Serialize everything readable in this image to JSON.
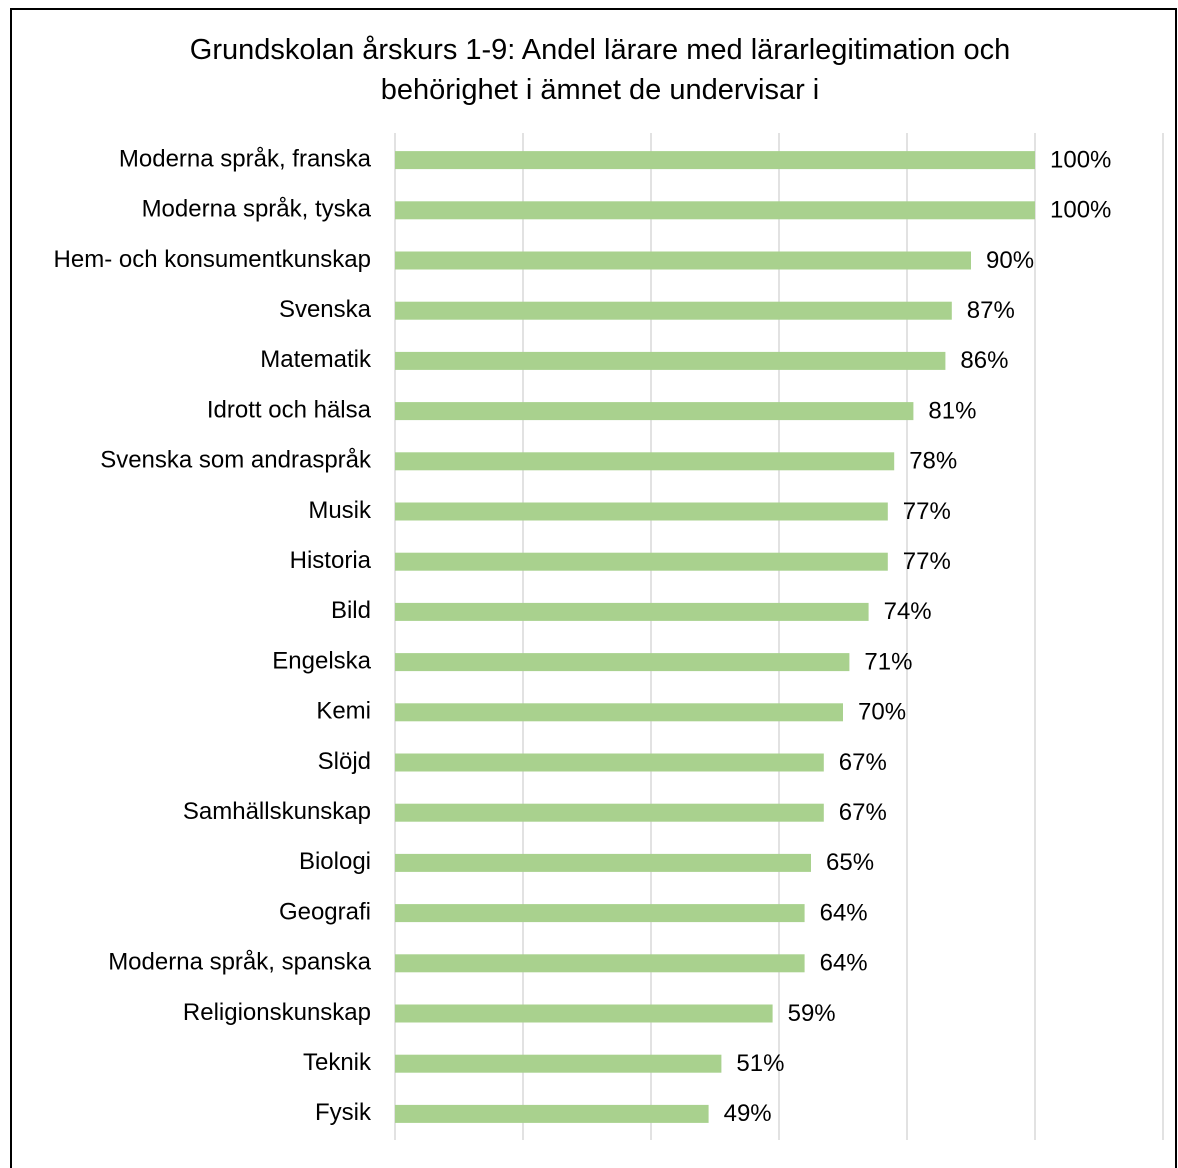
{
  "chart_data": {
    "type": "bar",
    "orientation": "horizontal",
    "title_lines": [
      "Grundskolan årskurs 1-9: Andel lärare med lärarlegitimation och",
      "behörighet i ämnet de undervisar i"
    ],
    "categories": [
      "Moderna språk, franska",
      "Moderna språk, tyska",
      "Hem- och konsumentkunskap",
      "Svenska",
      "Matematik",
      "Idrott och hälsa",
      "Svenska som andraspråk",
      "Musik",
      "Historia",
      "Bild",
      "Engelska",
      "Kemi",
      "Slöjd",
      "Samhällskunskap",
      "Biologi",
      "Geografi",
      "Moderna språk, spanska",
      "Religionskunskap",
      "Teknik",
      "Fysik"
    ],
    "values": [
      100,
      100,
      90,
      87,
      86,
      81,
      78,
      77,
      77,
      74,
      71,
      70,
      67,
      67,
      65,
      64,
      64,
      59,
      51,
      49
    ],
    "value_labels": [
      "100%",
      "100%",
      "90%",
      "87%",
      "86%",
      "81%",
      "78%",
      "77%",
      "77%",
      "74%",
      "71%",
      "70%",
      "67%",
      "67%",
      "65%",
      "64%",
      "64%",
      "59%",
      "51%",
      "49%"
    ],
    "xlim": [
      0,
      120
    ],
    "grid": true,
    "bar_color": "#a9d18e",
    "grid_color": "#d9d9d9"
  }
}
